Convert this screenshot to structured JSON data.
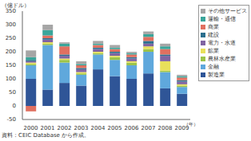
{
  "chart_data": {
    "type": "bar",
    "stacked": true,
    "grid": false,
    "legend": "right",
    "ylabel": "（億ドル）",
    "xlabel": "（年）",
    "source": "資料：CEIC Database から作成。",
    "categories": [
      "2000",
      "2001",
      "2002",
      "2003",
      "2004",
      "2005",
      "2006",
      "2007",
      "2008",
      "2009"
    ],
    "ylim": [
      -50,
      350
    ],
    "yticks": [
      -50,
      0,
      50,
      100,
      150,
      200,
      250,
      300,
      350
    ],
    "series": [
      {
        "name": "製造業",
        "color": "#2f5597",
        "values": [
          100,
          60,
          85,
          75,
          135,
          110,
          100,
          120,
          65,
          45
        ]
      },
      {
        "name": "金融",
        "color": "#5fa8dc",
        "values": [
          50,
          165,
          75,
          40,
          55,
          60,
          50,
          80,
          60,
          25
        ]
      },
      {
        "name": "農林水産業",
        "color": "#9cc44a",
        "values": [
          5,
          5,
          10,
          5,
          5,
          10,
          10,
          10,
          5,
          5
        ]
      },
      {
        "name": "鉱業",
        "color": "#e8e05a",
        "values": [
          5,
          5,
          5,
          5,
          5,
          5,
          5,
          10,
          35,
          5
        ]
      },
      {
        "name": "電力・水道",
        "color": "#8064a2",
        "values": [
          5,
          10,
          10,
          10,
          10,
          10,
          10,
          10,
          20,
          10
        ]
      },
      {
        "name": "建設",
        "color": "#2c6f8e",
        "values": [
          5,
          5,
          5,
          5,
          5,
          5,
          5,
          10,
          5,
          5
        ]
      },
      {
        "name": "商業",
        "color": "#e07060",
        "values": [
          -20,
          10,
          30,
          10,
          10,
          10,
          10,
          15,
          20,
          10
        ]
      },
      {
        "name": "運輸・通信",
        "color": "#3aa59a",
        "values": [
          10,
          20,
          10,
          5,
          5,
          5,
          5,
          10,
          10,
          5
        ]
      },
      {
        "name": "その他サービス",
        "color": "#a6a6a6",
        "values": [
          25,
          20,
          5,
          10,
          10,
          10,
          5,
          10,
          10,
          5
        ]
      }
    ]
  }
}
